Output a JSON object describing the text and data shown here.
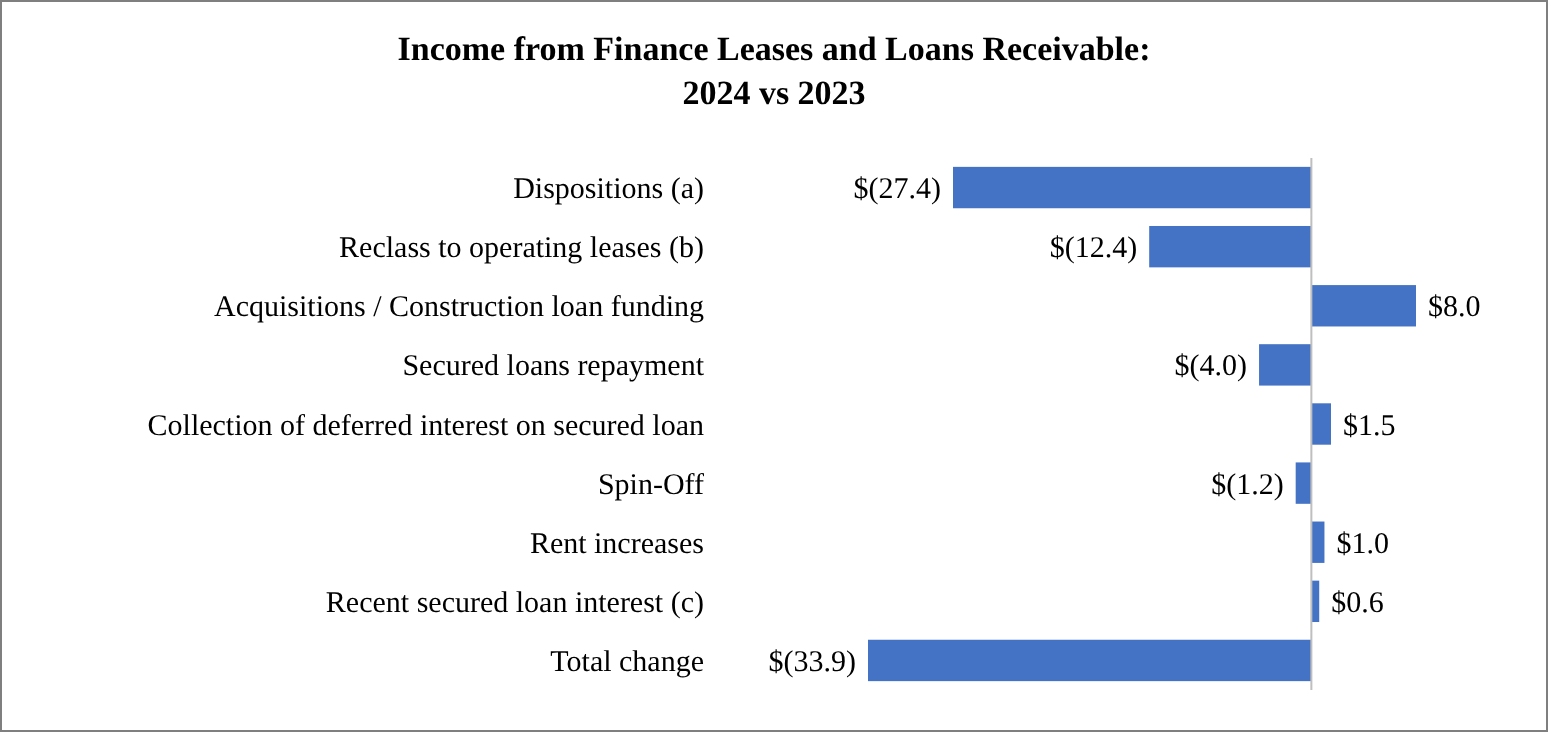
{
  "chart_data": {
    "type": "bar",
    "orientation": "horizontal",
    "title": "Income from Finance Leases and Loans Receivable:\n2024 vs 2023",
    "categories": [
      "Dispositions (a)",
      "Reclass to operating leases (b)",
      "Acquisitions / Construction loan funding",
      "Secured loans repayment",
      "Collection of deferred interest on secured loan",
      "Spin-Off",
      "Rent increases",
      "Recent secured loan interest (c)",
      "Total change"
    ],
    "series": [
      {
        "color": "#4472c4",
        "values": [
          -27.4,
          -12.4,
          8.0,
          -4.0,
          1.5,
          -1.2,
          1.0,
          0.6,
          -33.9
        ],
        "value_labels": [
          "$(27.4)",
          "$(12.4)",
          "$8.0",
          "$(4.0)",
          "$1.5",
          "$(1.2)",
          "$1.0",
          "$0.6",
          "$(33.9)"
        ]
      }
    ]
  }
}
